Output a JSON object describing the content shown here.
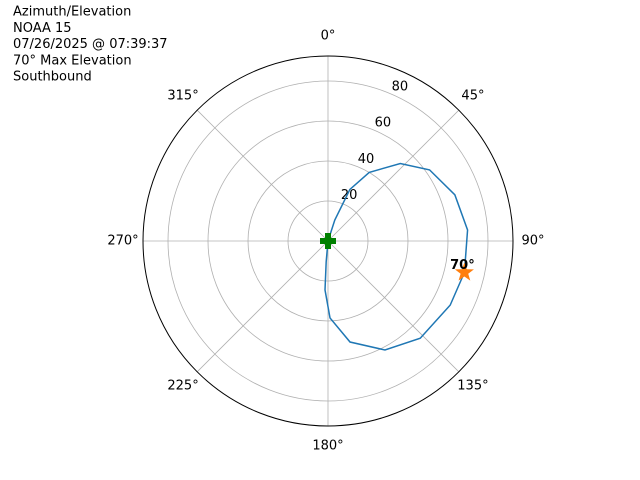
{
  "chart_data": {
    "type": "polar",
    "title_lines": [
      "Azimuth/Elevation",
      "NOAA 15",
      "07/26/2025 @ 07:39:37",
      "70° Max Elevation",
      "Southbound"
    ],
    "theta_zero": "N",
    "theta_direction": "clockwise",
    "thetaticks": [
      {
        "value": 0,
        "label": "0°"
      },
      {
        "value": 45,
        "label": "45°"
      },
      {
        "value": 90,
        "label": "90°"
      },
      {
        "value": 135,
        "label": "135°"
      },
      {
        "value": 180,
        "label": "180°"
      },
      {
        "value": 225,
        "label": "225°"
      },
      {
        "value": 270,
        "label": "270°"
      },
      {
        "value": 315,
        "label": "315°"
      }
    ],
    "rlim": [
      0,
      92.5
    ],
    "rticks": [
      20,
      40,
      60,
      80
    ],
    "grid": true,
    "series": [
      {
        "color": "#1f77b4",
        "marker": "line",
        "x": [
          15,
          18,
          23,
          31,
          43,
          55,
          70,
          85.5,
          103,
          117.7,
          136.5,
          152.4,
          167.7,
          178.5,
          183.5,
          185,
          185
        ],
        "values": [
          0,
          11,
          28,
          40,
          53,
          62,
          67.5,
          70,
          70,
          69,
          67,
          61.5,
          51.7,
          38.5,
          24.5,
          10.5,
          0
        ]
      },
      {
        "color": "#008000",
        "marker": "plus",
        "x": [
          0
        ],
        "values": [
          0
        ]
      },
      {
        "color": "#ff7f0e",
        "marker": "star",
        "x": [
          103
        ],
        "values": [
          70
        ],
        "value_labels": [
          "70°"
        ]
      }
    ]
  }
}
